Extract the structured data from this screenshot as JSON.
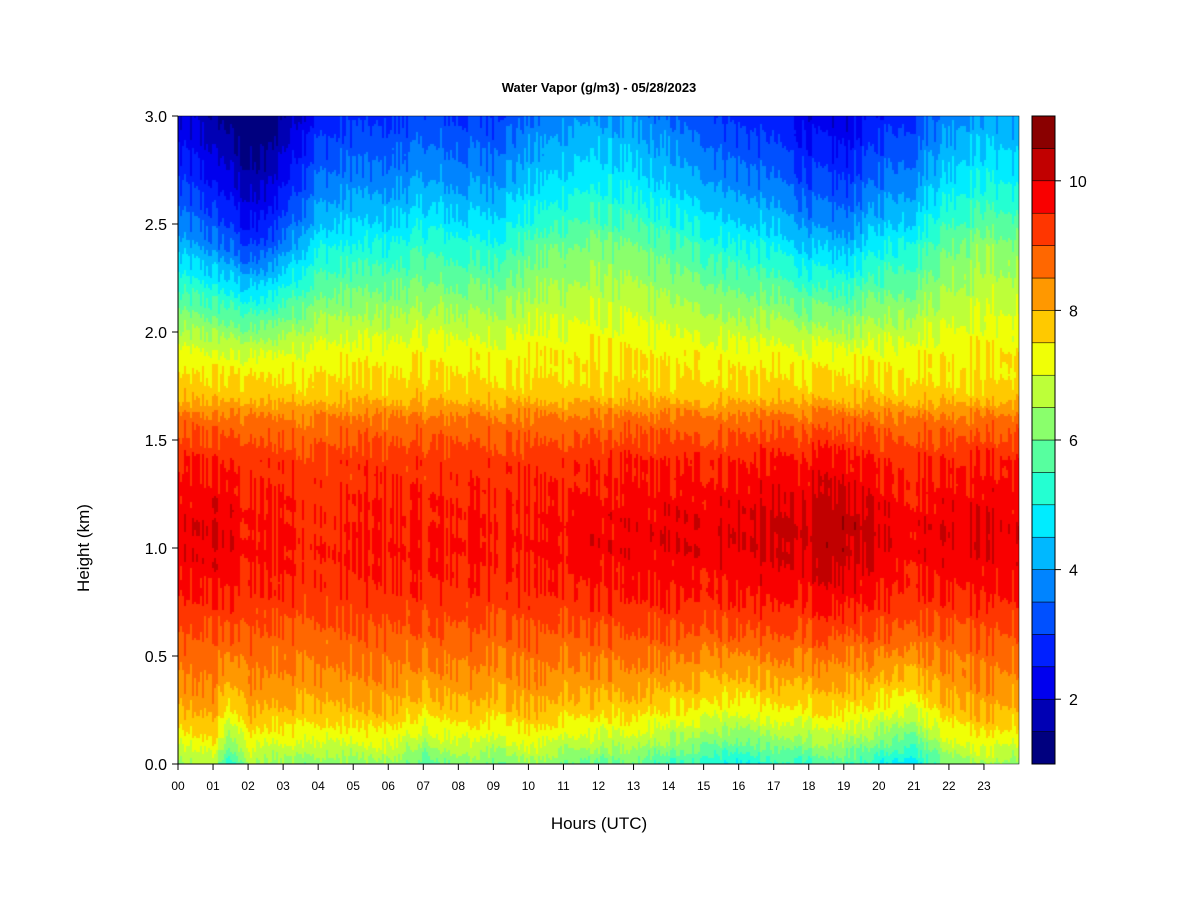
{
  "chart_data": {
    "type": "heatmap",
    "title": "Water Vapor (g/m3) - 05/28/2023",
    "xlabel": "Hours (UTC)",
    "ylabel": "Height (km)",
    "x_tick_labels": [
      "00",
      "01",
      "02",
      "03",
      "04",
      "05",
      "06",
      "07",
      "08",
      "09",
      "10",
      "11",
      "12",
      "13",
      "14",
      "15",
      "16",
      "17",
      "18",
      "19",
      "20",
      "21",
      "22",
      "23"
    ],
    "xlim": [
      0,
      24
    ],
    "y_tick_labels": [
      "0.0",
      "0.5",
      "1.0",
      "1.5",
      "2.0",
      "2.5",
      "3.0"
    ],
    "ylim": [
      0,
      3
    ],
    "colorbar": {
      "range": [
        1,
        11
      ],
      "tick_values": [
        2,
        4,
        6,
        8,
        10
      ],
      "tick_labels": [
        "2",
        "4",
        "6",
        "8",
        "10"
      ],
      "levels": [
        1.0,
        1.5,
        2.0,
        2.5,
        3.0,
        3.5,
        4.0,
        4.5,
        5.0,
        5.5,
        6.0,
        6.5,
        7.0,
        7.5,
        8.0,
        8.5,
        9.0,
        9.5,
        10.0,
        10.5,
        11.0
      ],
      "colors": [
        "#00007f",
        "#0000b4",
        "#0000ee",
        "#0020ff",
        "#0050ff",
        "#0084ff",
        "#00b8ff",
        "#00ecff",
        "#24ffd2",
        "#57ff9f",
        "#8aff6c",
        "#bdff39",
        "#f0ff06",
        "#ffc900",
        "#ff9800",
        "#ff6700",
        "#ff3600",
        "#f90000",
        "#c10000",
        "#8a0000"
      ]
    },
    "profile_heights_km": [
      0.0,
      0.1,
      0.25,
      0.4,
      0.6,
      0.8,
      1.0,
      1.2,
      1.4,
      1.6,
      1.7,
      1.9,
      2.1,
      2.3,
      2.5,
      2.7,
      2.9,
      3.0
    ],
    "base_profile_gm3": [
      6.2,
      7.0,
      7.9,
      8.4,
      8.9,
      9.4,
      9.6,
      9.5,
      9.3,
      8.6,
      7.8,
      7.2,
      6.2,
      5.2,
      4.2,
      3.4,
      2.8,
      2.5
    ],
    "hourly_anomaly_gm3": {
      "hours": [
        0,
        1,
        1.5,
        2,
        2.5,
        3,
        4,
        5,
        6,
        7,
        8,
        9,
        10,
        11,
        12,
        13,
        14,
        15,
        16,
        17,
        18,
        19,
        20,
        21,
        22,
        23,
        24
      ],
      "lower_layer": [
        0.0,
        0.3,
        -0.6,
        0.2,
        0.0,
        0.1,
        0.0,
        0.0,
        0.1,
        -0.3,
        0.0,
        -0.1,
        0.1,
        -0.1,
        -0.2,
        -0.2,
        -0.4,
        -0.5,
        -0.7,
        -0.5,
        -0.4,
        -0.3,
        -0.6,
        -0.8,
        0.0,
        0.2,
        0.0
      ],
      "middle_layer": [
        0.2,
        0.4,
        0.3,
        0.0,
        0.0,
        0.1,
        -0.2,
        -0.1,
        0.0,
        -0.1,
        0.0,
        0.0,
        0.0,
        0.1,
        0.2,
        0.2,
        0.3,
        0.3,
        0.4,
        0.5,
        0.6,
        0.8,
        0.4,
        0.2,
        0.4,
        0.4,
        0.3
      ],
      "upper_layer": [
        -0.3,
        -0.6,
        -0.8,
        -1.1,
        -1.0,
        -0.6,
        0.1,
        0.2,
        0.2,
        0.4,
        0.3,
        0.3,
        0.6,
        0.8,
        0.9,
        0.8,
        0.6,
        0.4,
        0.2,
        0.1,
        -0.2,
        -0.3,
        0.1,
        0.3,
        0.8,
        1.0,
        0.9
      ]
    }
  }
}
